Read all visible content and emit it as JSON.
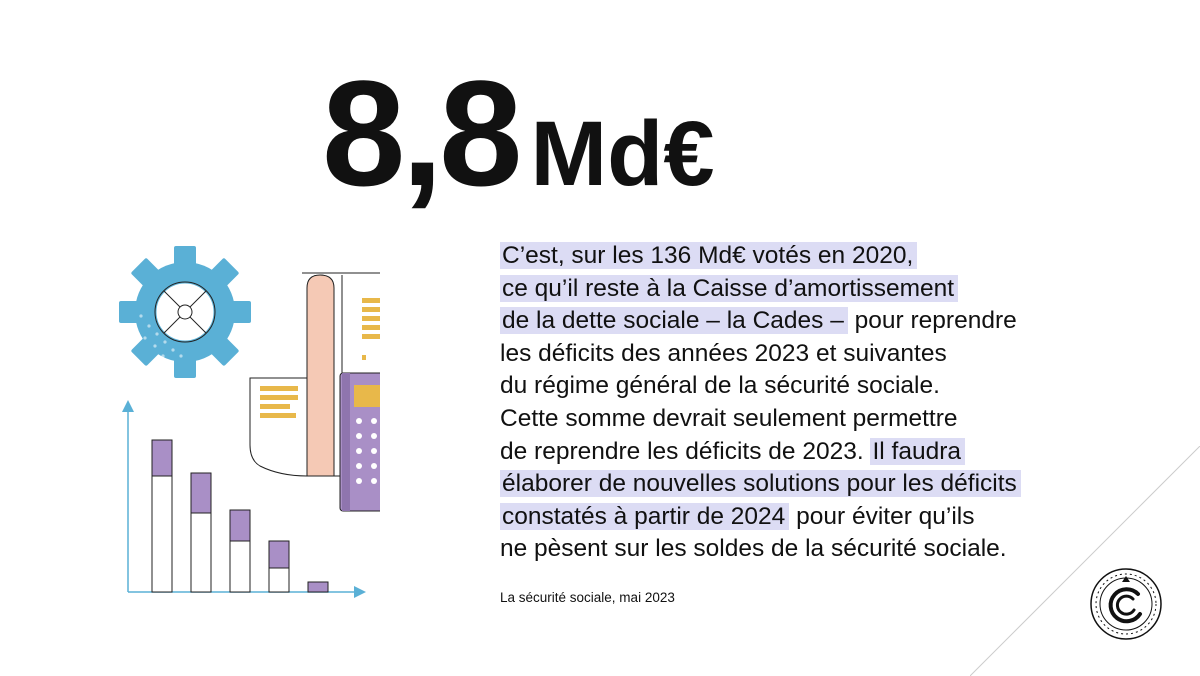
{
  "headline": {
    "value": "8,8",
    "unit": "Md€"
  },
  "body": {
    "lines": [
      {
        "segments": [
          {
            "text": "C’est, sur les 136 Md€ votés en 2020,",
            "highlight": true
          }
        ]
      },
      {
        "segments": [
          {
            "text": "ce qu’il reste à la Caisse d’amortissement",
            "highlight": true
          }
        ]
      },
      {
        "segments": [
          {
            "text": "de la dette sociale – la Cades –",
            "highlight": true
          },
          {
            "text": "  pour reprendre",
            "highlight": false
          }
        ]
      },
      {
        "segments": [
          {
            "text": "les déficits des années 2023 et suivantes",
            "highlight": false
          }
        ]
      },
      {
        "segments": [
          {
            "text": "du régime général de la sécurité sociale.",
            "highlight": false
          }
        ]
      },
      {
        "segments": [
          {
            "text": "Cette somme devrait seulement permettre",
            "highlight": false
          }
        ]
      },
      {
        "segments": [
          {
            "text": "de reprendre les déficits de 2023. ",
            "highlight": false
          },
          {
            "text": "Il faudra",
            "highlight": true
          }
        ]
      },
      {
        "segments": [
          {
            "text": "élaborer de nouvelles solutions pour les déficits",
            "highlight": true
          }
        ]
      },
      {
        "segments": [
          {
            "text": "constatés à partir de 2024",
            "highlight": true
          },
          {
            "text": " pour éviter qu’ils",
            "highlight": false
          }
        ]
      },
      {
        "segments": [
          {
            "text": "ne pèsent sur les soldes de la sécurité sociale.",
            "highlight": false
          }
        ]
      }
    ]
  },
  "source": "La sécurité sociale, mai 2023",
  "colors": {
    "text": "#111111",
    "highlight": "#dcdcf4",
    "gear": "#5ab0d6",
    "receipt_strip": "#f5c9b5",
    "calculator": "#a98fc6",
    "calculator_screen": "#e8b84a",
    "bar_top": "#a98fc6",
    "axis": "#5ab0d6"
  },
  "icons": {
    "illustration": "finance-illustration-icon",
    "gear": "gear-icon",
    "calculator": "calculator-icon",
    "receipt": "receipt-icon",
    "bar_chart": "bar-chart-icon",
    "logo": "institution-seal-icon"
  }
}
